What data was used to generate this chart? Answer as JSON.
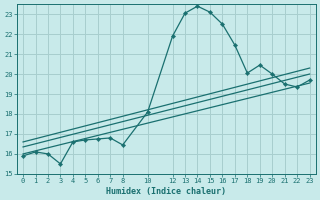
{
  "xlabel": "Humidex (Indice chaleur)",
  "bg_color": "#c8eaea",
  "grid_color": "#a8cece",
  "line_color": "#1a7070",
  "xlim": [
    -0.5,
    23.5
  ],
  "ylim": [
    15,
    23.5
  ],
  "yticks": [
    15,
    16,
    17,
    18,
    19,
    20,
    21,
    22,
    23
  ],
  "xticks": [
    0,
    1,
    2,
    3,
    4,
    5,
    6,
    7,
    8,
    10,
    12,
    13,
    14,
    15,
    16,
    17,
    18,
    19,
    20,
    21,
    22,
    23
  ],
  "main_line_x": [
    0,
    1,
    2,
    3,
    4,
    5,
    6,
    7,
    8,
    10,
    12,
    13,
    14,
    15,
    16,
    17,
    18,
    19,
    20,
    21,
    22,
    23
  ],
  "main_line_y": [
    15.9,
    16.1,
    16.0,
    15.5,
    16.6,
    16.7,
    16.75,
    16.8,
    16.45,
    18.1,
    21.9,
    23.05,
    23.4,
    23.1,
    22.5,
    21.45,
    20.05,
    20.45,
    20.0,
    19.5,
    19.35,
    19.7
  ],
  "trend1_x": [
    0,
    23
  ],
  "trend1_y": [
    16.0,
    19.55
  ],
  "trend2_x": [
    0,
    23
  ],
  "trend2_y": [
    16.35,
    20.0
  ],
  "trend3_x": [
    0,
    23
  ],
  "trend3_y": [
    16.6,
    20.3
  ]
}
